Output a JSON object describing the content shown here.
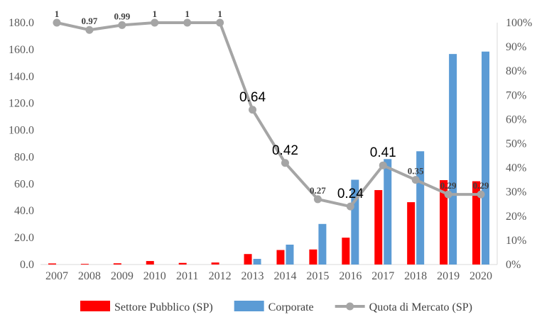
{
  "chart_data": {
    "type": "bar",
    "title": "",
    "xlabel": "",
    "ylabel": "",
    "categories": [
      "2007",
      "2008",
      "2009",
      "2010",
      "2011",
      "2012",
      "2013",
      "2014",
      "2015",
      "2016",
      "2017",
      "2018",
      "2019",
      "2020"
    ],
    "series": [
      {
        "name": "Settore Pubblico (SP)",
        "type": "bar",
        "axis": "left",
        "color": "#ff0000",
        "values": [
          0.8,
          0.5,
          0.9,
          2.6,
          1.2,
          1.5,
          7.8,
          10.8,
          11.2,
          20.0,
          55.4,
          46.4,
          62.8,
          62.0
        ]
      },
      {
        "name": "Corporate",
        "type": "bar",
        "axis": "left",
        "color": "#5b9bd5",
        "values": [
          0.0,
          0.0,
          0.0,
          0.0,
          0.0,
          0.0,
          4.2,
          14.8,
          30.2,
          63.1,
          78.5,
          84.3,
          156.7,
          158.5
        ]
      },
      {
        "name": "Quota di Mercato (SP)",
        "type": "line",
        "axis": "right",
        "color": "#a5a5a5",
        "values": [
          1,
          0.97,
          0.99,
          1,
          1,
          1,
          0.64,
          0.42,
          0.27,
          0.24,
          0.41,
          0.35,
          0.29,
          0.29
        ],
        "labels": [
          "1",
          "0.97",
          "0.99",
          "1",
          "1",
          "1",
          "0.64",
          "0.42",
          "0.27",
          "0.24",
          "0.41",
          "0.35",
          "0.29",
          "0.29"
        ],
        "label_style": [
          "bold",
          "bold",
          "bold",
          "bold",
          "bold",
          "bold",
          "plain",
          "plain",
          "bold",
          "plain",
          "plain",
          "bold",
          "bold",
          "bold"
        ]
      }
    ],
    "y_left": {
      "min": 0,
      "max": 180,
      "step": 20,
      "ticks": [
        "0.0",
        "20.0",
        "40.0",
        "60.0",
        "80.0",
        "100.0",
        "120.0",
        "140.0",
        "160.0",
        "180.0"
      ]
    },
    "y_right": {
      "min": 0,
      "max": 1,
      "step": 0.1,
      "ticks": [
        "0%",
        "10%",
        "20%",
        "30%",
        "40%",
        "50%",
        "60%",
        "70%",
        "80%",
        "90%",
        "100%"
      ]
    },
    "grid": false,
    "legend_position": "bottom"
  }
}
